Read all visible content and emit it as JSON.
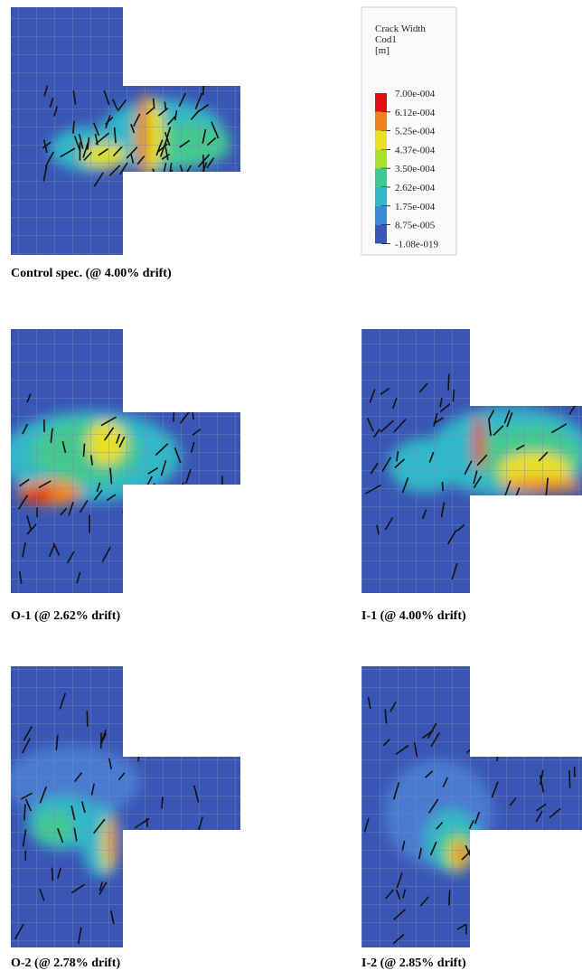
{
  "panels": [
    {
      "caption": "Control spec. (@ 4.00% drift)"
    },
    {
      "caption": "O-1 (@ 2.62% drift)"
    },
    {
      "caption": "I-1 (@ 4.00% drift)"
    },
    {
      "caption": "O-2 (@ 2.78% drift)"
    },
    {
      "caption": "I-2 (@ 2.85% drift)"
    }
  ],
  "legend": {
    "title": [
      "Crack Width",
      "Cod1",
      "[m]"
    ],
    "labels": [
      "7.00e-004",
      "6.12e-004",
      "5.25e-004",
      "4.37e-004",
      "3.50e-004",
      "2.62e-004",
      "1.75e-004",
      "8.75e-005",
      "-1.08e-019"
    ]
  }
}
